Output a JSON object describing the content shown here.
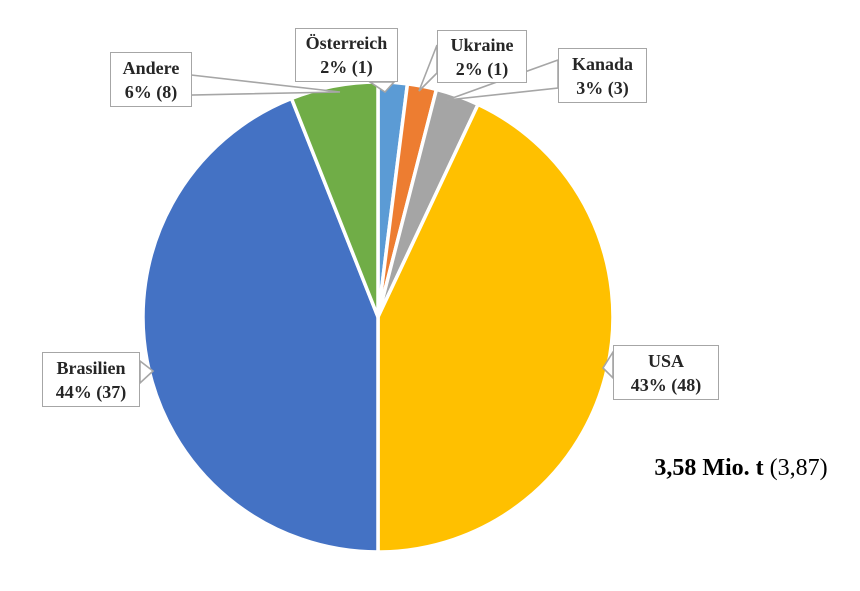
{
  "chart_data": {
    "type": "pie",
    "title": "",
    "categories": [
      "Österreich",
      "Ukraine",
      "Kanada",
      "USA",
      "Brasilien",
      "Andere"
    ],
    "values": [
      2,
      2,
      3,
      43,
      44,
      6
    ],
    "counts": [
      1,
      1,
      3,
      48,
      37,
      8
    ],
    "slices": [
      {
        "label": "Österreich",
        "pct": 2,
        "count": 1,
        "display": "2% (1)",
        "color": "#5B9BD5"
      },
      {
        "label": "Ukraine",
        "pct": 2,
        "count": 1,
        "display": "2% (1)",
        "color": "#ED7D31"
      },
      {
        "label": "Kanada",
        "pct": 3,
        "count": 3,
        "display": "3% (3)",
        "color": "#A5A5A5"
      },
      {
        "label": "USA",
        "pct": 43,
        "count": 48,
        "display": "43% (48)",
        "color": "#FFC000"
      },
      {
        "label": "Brasilien",
        "pct": 44,
        "count": 37,
        "display": "44% (37)",
        "color": "#4472C4"
      },
      {
        "label": "Andere",
        "pct": 6,
        "count": 8,
        "display": "6% (8)",
        "color": "#70AD47"
      }
    ],
    "total_label": {
      "bold": "3,58 Mio. t",
      "regular": "(3,87)"
    },
    "layout": {
      "start_angle_deg": 0,
      "direction": "clockwise",
      "legend": "none",
      "data_labels": "callout-boxes",
      "background": "#FFFFFF",
      "slice_border_color": "#FFFFFF",
      "callout_border_color": "#A6A6A6"
    }
  }
}
